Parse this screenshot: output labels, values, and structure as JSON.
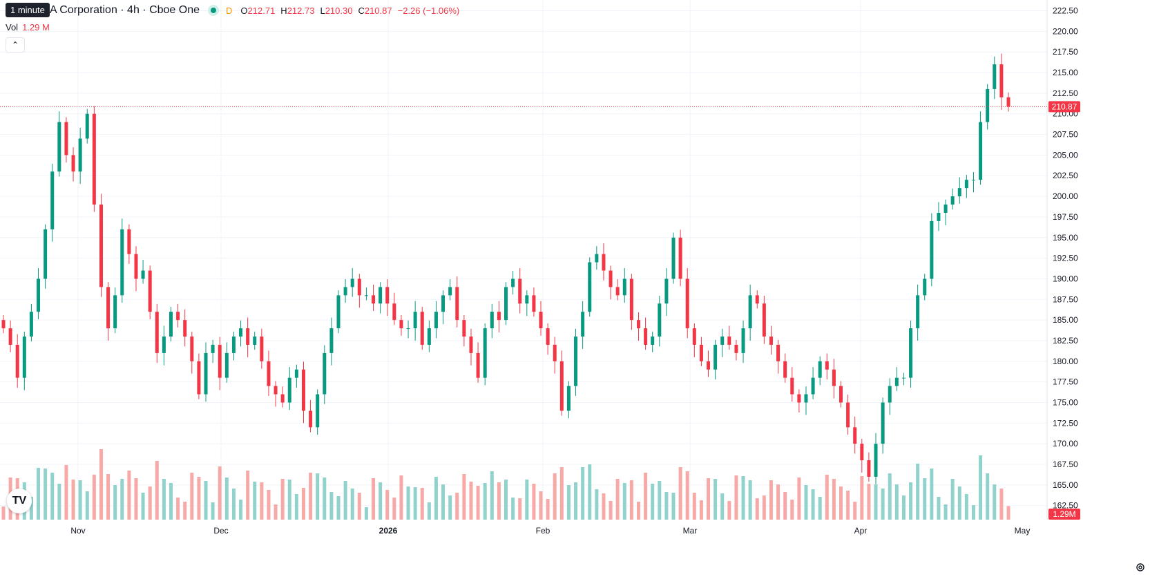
{
  "tooltip": "1 minute",
  "legend": {
    "title": "A Corporation · 4h · Cboe One",
    "interval_flag": "D",
    "open_label": "O",
    "open": "212.71",
    "high_label": "H",
    "high": "212.73",
    "low_label": "L",
    "low": "210.30",
    "close_label": "C",
    "close": "210.87",
    "change": "−2.26 (−1.06%)"
  },
  "volume_legend": {
    "label": "Vol",
    "value": "1.29 M"
  },
  "colors": {
    "up": "#089981",
    "down": "#f23645",
    "up_vol": "#92d2cc",
    "down_vol": "#f7a9a7",
    "grid": "#f0f3fa",
    "text": "#131722"
  },
  "icons": {
    "collapse": "chevron-up-icon",
    "logo": "tradingview-logo-icon",
    "settings": "gear-icon"
  },
  "chart_data": {
    "type": "candlestick",
    "price_axis_ticks": [
      "222.50",
      "220.00",
      "217.50",
      "215.00",
      "212.50",
      "210.00",
      "207.50",
      "205.00",
      "202.50",
      "200.00",
      "197.50",
      "195.00",
      "192.50",
      "190.00",
      "187.50",
      "185.00",
      "182.50",
      "180.00",
      "177.50",
      "175.00",
      "172.50",
      "170.00",
      "167.50",
      "165.00",
      "162.50"
    ],
    "ylim": [
      160.8,
      223.8
    ],
    "time_axis_labels": [
      "Nov",
      "Dec",
      "2026",
      "Feb",
      "Mar",
      "Apr",
      "May"
    ],
    "last_price_label": "210.87",
    "last_price": 210.87,
    "volume_label": "1.29M",
    "series": [
      {
        "name": "OHLC",
        "close": [
          184,
          182,
          178,
          183,
          186,
          190,
          196,
          203,
          209,
          205,
          203,
          207,
          210,
          199,
          189,
          184,
          188,
          196,
          193,
          190,
          191,
          186,
          181,
          183,
          186,
          185,
          183,
          180,
          176,
          181,
          182,
          178,
          181,
          183,
          184,
          182,
          183,
          180,
          177,
          176,
          175,
          178,
          179,
          174,
          172,
          176,
          181,
          184,
          188,
          189,
          190,
          188,
          188,
          187,
          189,
          187,
          185,
          184,
          184,
          186,
          182,
          184,
          186,
          188,
          189,
          185,
          183,
          181,
          178,
          184,
          186,
          185,
          189,
          190,
          187,
          188,
          186,
          184,
          182,
          180,
          174,
          177,
          183,
          186,
          192,
          193,
          191,
          189,
          188,
          190,
          185,
          184,
          182,
          183,
          187,
          190,
          195,
          190,
          184,
          182,
          180,
          179,
          182,
          183,
          182,
          181,
          184,
          188,
          187,
          183,
          182,
          180,
          178,
          176,
          175,
          176,
          178,
          180,
          179,
          177,
          175,
          172,
          170,
          168,
          166,
          170,
          175,
          177,
          178,
          178,
          184,
          188,
          190,
          197,
          198,
          199,
          200,
          201,
          202,
          202,
          209,
          213,
          216,
          212,
          210.87
        ]
      }
    ]
  }
}
